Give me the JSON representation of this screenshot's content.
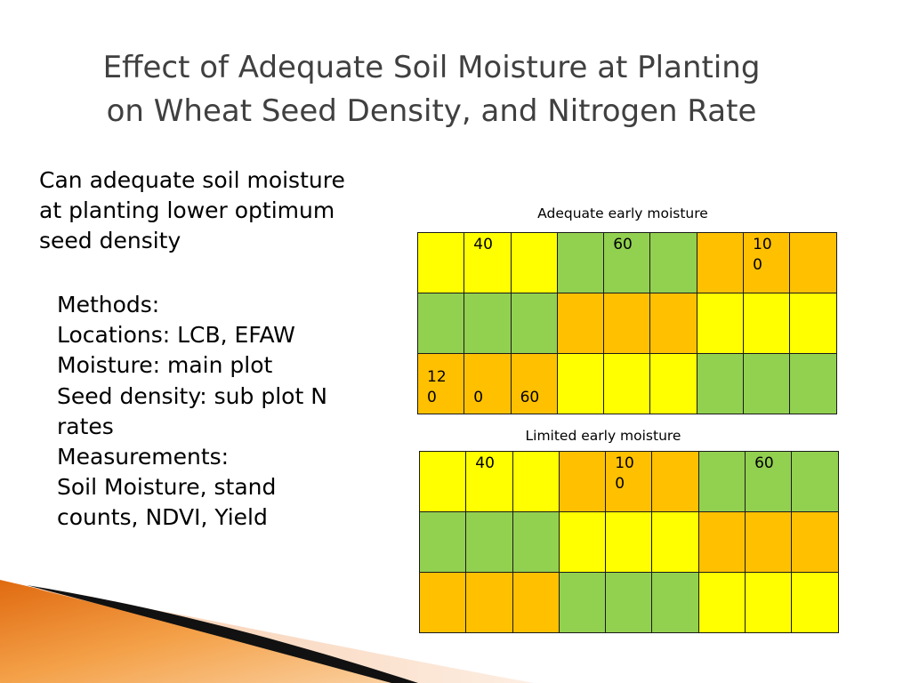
{
  "title": {
    "line1": "Effect of  Adequate  Soil Moisture  at  Planting",
    "line2": "on Wheat Seed Density, and Nitrogen Rate"
  },
  "question": {
    "lines": [
      "Can adequate soil moisture",
      "at planting lower optimum",
      "seed density"
    ]
  },
  "methods": {
    "lines": [
      "Methods:",
      "Locations: LCB, EFAW",
      "Moisture: main plot",
      "Seed density: sub plot N",
      "rates",
      "Measurements:",
      "Soil Moisture, stand",
      "counts, NDVI, Yield"
    ]
  },
  "grid_adequate": {
    "caption": "Adequate early moisture",
    "rows": [
      [
        {
          "c": "yellow",
          "t": ""
        },
        {
          "c": "yellow",
          "t": "40"
        },
        {
          "c": "yellow",
          "t": ""
        },
        {
          "c": "green",
          "t": ""
        },
        {
          "c": "green",
          "t": "60"
        },
        {
          "c": "green",
          "t": ""
        },
        {
          "c": "orange",
          "t": ""
        },
        {
          "c": "orange",
          "t": "10\n0"
        },
        {
          "c": "orange",
          "t": ""
        }
      ],
      [
        {
          "c": "green",
          "t": ""
        },
        {
          "c": "green",
          "t": ""
        },
        {
          "c": "green",
          "t": ""
        },
        {
          "c": "orange",
          "t": ""
        },
        {
          "c": "orange",
          "t": ""
        },
        {
          "c": "orange",
          "t": ""
        },
        {
          "c": "yellow",
          "t": ""
        },
        {
          "c": "yellow",
          "t": ""
        },
        {
          "c": "yellow",
          "t": ""
        }
      ],
      [
        {
          "c": "orange",
          "t": "12\n0"
        },
        {
          "c": "orange",
          "t": "0"
        },
        {
          "c": "orange",
          "t": "60"
        },
        {
          "c": "yellow",
          "t": ""
        },
        {
          "c": "yellow",
          "t": ""
        },
        {
          "c": "yellow",
          "t": ""
        },
        {
          "c": "green",
          "t": ""
        },
        {
          "c": "green",
          "t": ""
        },
        {
          "c": "green",
          "t": ""
        }
      ]
    ]
  },
  "grid_limited": {
    "caption": "Limited early moisture",
    "rows": [
      [
        {
          "c": "yellow",
          "t": ""
        },
        {
          "c": "yellow",
          "t": "40"
        },
        {
          "c": "yellow",
          "t": ""
        },
        {
          "c": "orange",
          "t": ""
        },
        {
          "c": "orange",
          "t": "10\n0"
        },
        {
          "c": "orange",
          "t": ""
        },
        {
          "c": "green",
          "t": ""
        },
        {
          "c": "green",
          "t": "60"
        },
        {
          "c": "green",
          "t": ""
        }
      ],
      [
        {
          "c": "green",
          "t": ""
        },
        {
          "c": "green",
          "t": ""
        },
        {
          "c": "green",
          "t": ""
        },
        {
          "c": "yellow",
          "t": ""
        },
        {
          "c": "yellow",
          "t": ""
        },
        {
          "c": "yellow",
          "t": ""
        },
        {
          "c": "orange",
          "t": ""
        },
        {
          "c": "orange",
          "t": ""
        },
        {
          "c": "orange",
          "t": ""
        }
      ],
      [
        {
          "c": "orange",
          "t": ""
        },
        {
          "c": "orange",
          "t": ""
        },
        {
          "c": "orange",
          "t": ""
        },
        {
          "c": "green",
          "t": ""
        },
        {
          "c": "green",
          "t": ""
        },
        {
          "c": "green",
          "t": ""
        },
        {
          "c": "yellow",
          "t": ""
        },
        {
          "c": "yellow",
          "t": ""
        },
        {
          "c": "yellow",
          "t": ""
        }
      ]
    ]
  },
  "colors": {
    "yellow": "#ffff00",
    "green": "#92d050",
    "orange": "#ffc000",
    "title_text": "#404040"
  }
}
